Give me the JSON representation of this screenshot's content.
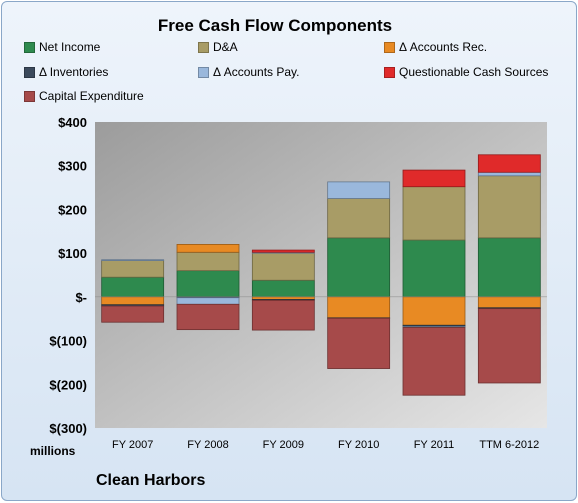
{
  "chart_data": {
    "type": "bar",
    "stacked": true,
    "title": "Free Cash Flow Components",
    "categories": [
      "FY 2007",
      "FY 2008",
      "FY 2009",
      "FY 2010",
      "FY 2011",
      "TTM 6-2012"
    ],
    "y_ticks": [
      "$400",
      "$300",
      "$200",
      "$100",
      "$-",
      "$(100)",
      "$(200)",
      "$(300)"
    ],
    "ylim": [
      -300,
      400
    ],
    "units": "millions",
    "grid": false,
    "legend_position": "top",
    "series": [
      {
        "name": "Net Income",
        "color": "#2e8a4e",
        "values": [
          45,
          60,
          38,
          135,
          130,
          135
        ]
      },
      {
        "name": "D&A",
        "color": "#a89c66",
        "values": [
          38,
          42,
          62,
          90,
          122,
          142
        ]
      },
      {
        "name": "Δ Accounts Rec.",
        "color": "#e88a23",
        "values": [
          -18,
          18,
          -6,
          -48,
          -65,
          -25
        ]
      },
      {
        "name": "Δ Inventories",
        "color": "#3b4a5c",
        "values": [
          -3,
          -2,
          -2,
          -1,
          -3,
          -2
        ]
      },
      {
        "name": "Δ Accounts Pay.",
        "color": "#9ab8dc",
        "values": [
          2,
          -15,
          2,
          38,
          -2,
          8
        ]
      },
      {
        "name": "Questionable Cash Sources",
        "color": "#e02a2a",
        "values": [
          0,
          0,
          5,
          0,
          38,
          40
        ]
      },
      {
        "name": "Capital Expenditure",
        "color": "#a64a4a",
        "values": [
          -37,
          -58,
          -68,
          -115,
          -155,
          -170
        ]
      }
    ]
  },
  "footer": {
    "company": "Clean Harbors",
    "units_label": "millions"
  }
}
